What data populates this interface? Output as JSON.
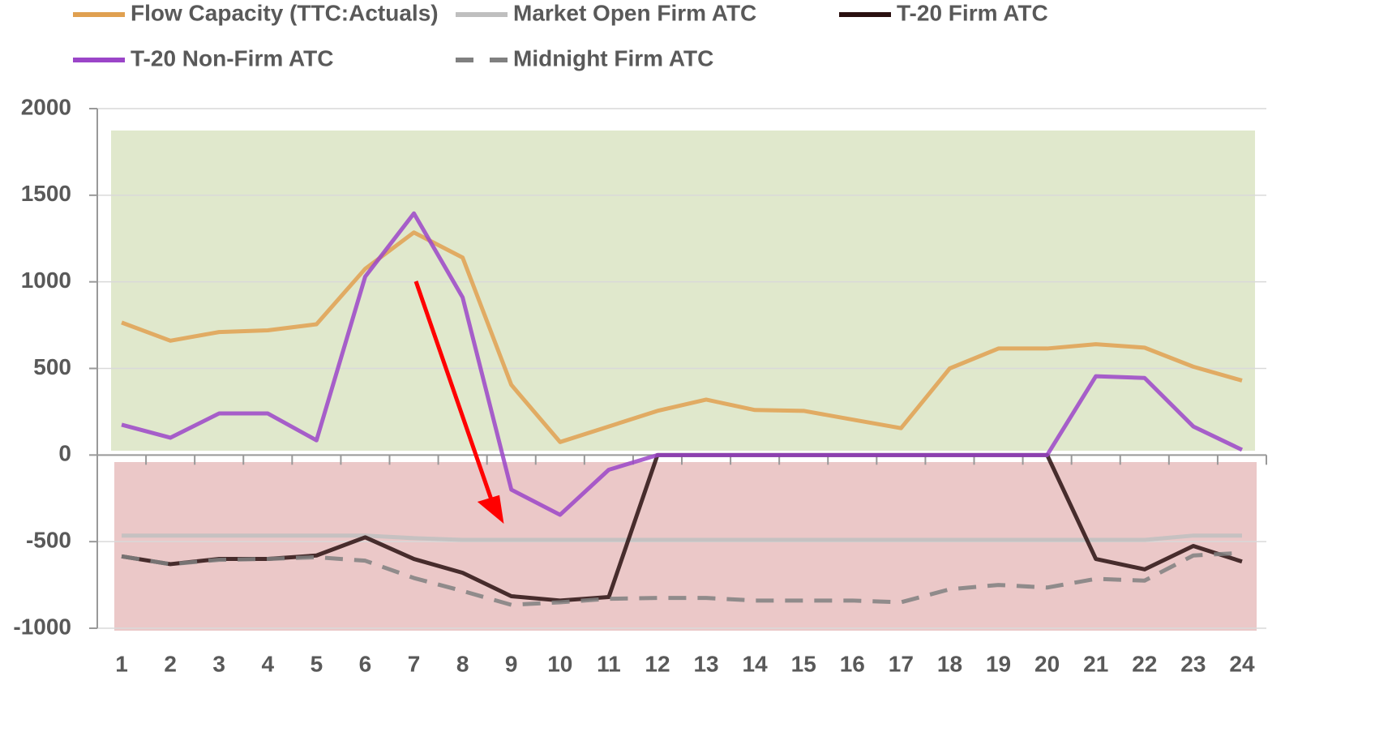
{
  "chart_data": {
    "type": "line",
    "categories": [
      "1",
      "2",
      "3",
      "4",
      "5",
      "6",
      "7",
      "8",
      "9",
      "10",
      "11",
      "12",
      "13",
      "14",
      "15",
      "16",
      "17",
      "18",
      "19",
      "20",
      "21",
      "22",
      "23",
      "24"
    ],
    "series": [
      {
        "name": "Flow Capacity (TTC:Actuals)",
        "color": "#e0a050",
        "dash": false,
        "values": [
          765,
          660,
          710,
          720,
          755,
          1075,
          1285,
          1140,
          405,
          75,
          165,
          255,
          320,
          260,
          255,
          205,
          155,
          500,
          615,
          615,
          640,
          620,
          510,
          430
        ]
      },
      {
        "name": "Market Open Firm ATC",
        "color": "#bfbfbf",
        "dash": false,
        "values": [
          -465,
          -465,
          -465,
          -465,
          -465,
          -465,
          -480,
          -490,
          -490,
          -490,
          -490,
          -490,
          -490,
          -490,
          -490,
          -490,
          -490,
          -490,
          -490,
          -490,
          -490,
          -490,
          -465,
          -465
        ]
      },
      {
        "name": "T-20 Firm ATC",
        "color": "#2a1010",
        "dash": false,
        "values": [
          -585,
          -630,
          -600,
          -600,
          -580,
          -475,
          -600,
          -680,
          -815,
          -840,
          -820,
          0,
          0,
          0,
          0,
          0,
          0,
          0,
          0,
          0,
          -600,
          -660,
          -525,
          -615
        ]
      },
      {
        "name": "T-20 Non-Firm ATC",
        "color": "#9b45c8",
        "dash": false,
        "values": [
          175,
          100,
          240,
          240,
          85,
          1030,
          1395,
          910,
          -200,
          -345,
          -85,
          0,
          0,
          0,
          0,
          0,
          0,
          0,
          0,
          0,
          455,
          445,
          165,
          30
        ]
      },
      {
        "name": "Midnight Firm ATC",
        "color": "#808080",
        "dash": true,
        "values": [
          -585,
          -630,
          -605,
          -600,
          -590,
          -610,
          -710,
          -785,
          -865,
          -850,
          -830,
          -825,
          -825,
          -840,
          -840,
          -840,
          -850,
          -775,
          -750,
          -765,
          -715,
          -725,
          -580,
          -565
        ]
      }
    ],
    "ylim": [
      -1000,
      2000
    ],
    "yticks": [
      -1000,
      -500,
      0,
      500,
      1000,
      1500,
      2000
    ],
    "grid": true
  }
}
